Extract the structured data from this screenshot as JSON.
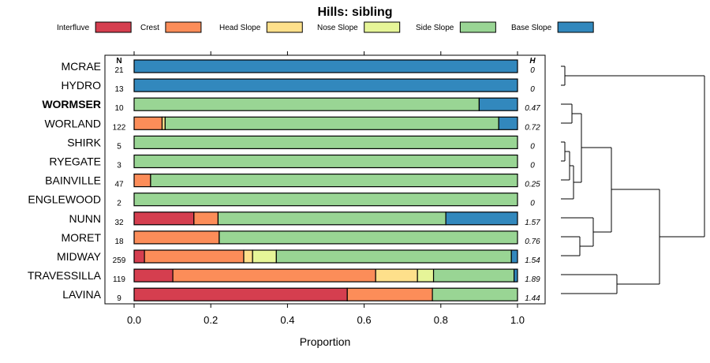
{
  "chart_data": {
    "type": "stacked-bar",
    "title": "Hills: sibling",
    "xlabel": "Proportion",
    "xlim": [
      0,
      1
    ],
    "xticks": [
      "0.0",
      "0.2",
      "0.4",
      "0.6",
      "0.8",
      "1.0"
    ],
    "xtick_values": [
      0,
      0.2,
      0.4,
      0.6,
      0.8,
      1.0
    ],
    "n_header": "N",
    "h_header": "H",
    "legend": [
      {
        "name": "Interfluve",
        "color": "#d53e4f"
      },
      {
        "name": "Crest",
        "color": "#fc8d59"
      },
      {
        "name": "Head Slope",
        "color": "#fee08b"
      },
      {
        "name": "Nose Slope",
        "color": "#e6f598"
      },
      {
        "name": "Side Slope",
        "color": "#99d594"
      },
      {
        "name": "Base Slope",
        "color": "#3288bd"
      }
    ],
    "rows": [
      {
        "name": "MCRAE",
        "n": "21",
        "h": "0",
        "bold": false,
        "values": [
          0,
          0,
          0,
          0,
          0,
          1.0
        ]
      },
      {
        "name": "HYDRO",
        "n": "13",
        "h": "0",
        "bold": false,
        "values": [
          0,
          0,
          0,
          0,
          0,
          1.0
        ]
      },
      {
        "name": "WORMSER",
        "n": "10",
        "h": "0.47",
        "bold": true,
        "values": [
          0,
          0,
          0,
          0,
          0.9,
          0.1
        ]
      },
      {
        "name": "WORLAND",
        "n": "122",
        "h": "0.72",
        "bold": false,
        "values": [
          0,
          0.073,
          0.008,
          0,
          0.87,
          0.049
        ]
      },
      {
        "name": "SHIRK",
        "n": "5",
        "h": "0",
        "bold": false,
        "values": [
          0,
          0,
          0,
          0,
          1.0,
          0
        ]
      },
      {
        "name": "RYEGATE",
        "n": "3",
        "h": "0",
        "bold": false,
        "values": [
          0,
          0,
          0,
          0,
          1.0,
          0
        ]
      },
      {
        "name": "BAINVILLE",
        "n": "47",
        "h": "0.25",
        "bold": false,
        "values": [
          0,
          0.043,
          0,
          0,
          0.957,
          0
        ]
      },
      {
        "name": "ENGLEWOOD",
        "n": "2",
        "h": "0",
        "bold": false,
        "values": [
          0,
          0,
          0,
          0,
          1.0,
          0
        ]
      },
      {
        "name": "NUNN",
        "n": "32",
        "h": "1.57",
        "bold": false,
        "values": [
          0.156,
          0.063,
          0,
          0,
          0.594,
          0.187
        ]
      },
      {
        "name": "MORET",
        "n": "18",
        "h": "0.76",
        "bold": false,
        "values": [
          0,
          0.222,
          0,
          0,
          0.778,
          0
        ]
      },
      {
        "name": "MIDWAY",
        "n": "259",
        "h": "1.54",
        "bold": false,
        "values": [
          0.027,
          0.259,
          0.023,
          0.062,
          0.613,
          0.016
        ]
      },
      {
        "name": "TRAVESSILLA",
        "n": "119",
        "h": "1.89",
        "bold": false,
        "values": [
          0.101,
          0.529,
          0.109,
          0.042,
          0.21,
          0.009
        ]
      },
      {
        "name": "LAVINA",
        "n": "9",
        "h": "1.44",
        "bold": false,
        "values": [
          0.556,
          0.222,
          0,
          0,
          0.222,
          0
        ]
      }
    ]
  }
}
